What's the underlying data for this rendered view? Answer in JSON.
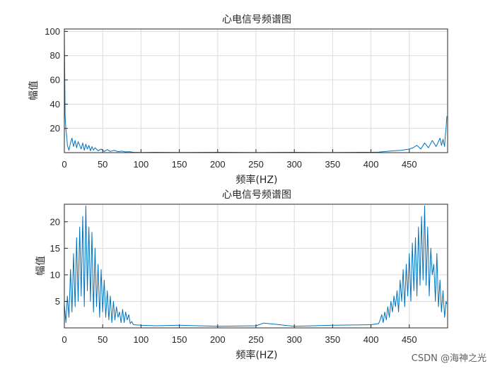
{
  "watermark": "CSDN @海神之光",
  "colors": {
    "line": "#0072BD",
    "grid": "#dcdcdc",
    "axis": "#262626"
  },
  "chart_data": [
    {
      "type": "line",
      "title": "心电信号频谱图",
      "xlabel": "频率(HZ)",
      "ylabel": "幅值",
      "xlim": [
        0,
        500
      ],
      "ylim": [
        0,
        102
      ],
      "xticks": [
        "0",
        "50",
        "100",
        "150",
        "200",
        "250",
        "300",
        "350",
        "400",
        "450"
      ],
      "yticks": [
        "20",
        "40",
        "60",
        "80",
        "100"
      ],
      "grid": true,
      "series": [
        {
          "name": "spectrum",
          "x": [
            0,
            1,
            2,
            3,
            4,
            6,
            8,
            10,
            12,
            14,
            16,
            18,
            20,
            22,
            24,
            26,
            28,
            30,
            32,
            34,
            36,
            38,
            40,
            44,
            48,
            52,
            56,
            60,
            65,
            70,
            75,
            80,
            85,
            90,
            100,
            120,
            150,
            200,
            250,
            300,
            350,
            400,
            410,
            420,
            430,
            440,
            450,
            455,
            460,
            465,
            470,
            475,
            480,
            485,
            488,
            490,
            492,
            494,
            496,
            497,
            498,
            499
          ],
          "values": [
            101,
            30,
            19,
            14,
            6,
            2,
            8,
            12,
            5,
            10,
            4,
            9,
            6,
            3,
            8,
            2,
            7,
            3,
            6,
            1.5,
            5,
            2,
            4,
            1.5,
            3,
            1,
            2.5,
            1,
            2,
            0.8,
            1.2,
            0.6,
            0.8,
            0.3,
            0.2,
            0.3,
            0.2,
            0.3,
            0.2,
            0.3,
            0.2,
            0.3,
            0.4,
            1,
            1.5,
            2,
            3,
            4,
            6,
            3,
            8,
            4,
            10,
            5,
            9,
            12,
            6,
            11,
            5,
            14,
            20,
            30
          ]
        }
      ]
    },
    {
      "type": "line",
      "title": "心电信号频谱图",
      "xlabel": "频率(HZ)",
      "ylabel": "幅值",
      "xlim": [
        0,
        500
      ],
      "ylim": [
        0,
        23.3
      ],
      "xticks": [
        "0",
        "50",
        "100",
        "150",
        "200",
        "250",
        "300",
        "350",
        "400",
        "450"
      ],
      "yticks": [
        "5",
        "10",
        "15",
        "20"
      ],
      "grid": true,
      "series": [
        {
          "name": "spectrum",
          "x": [
            0,
            2,
            4,
            6,
            8,
            10,
            12,
            14,
            16,
            18,
            20,
            22,
            24,
            26,
            28,
            30,
            32,
            34,
            36,
            38,
            40,
            42,
            44,
            46,
            48,
            50,
            52,
            54,
            56,
            58,
            60,
            62,
            64,
            66,
            68,
            70,
            72,
            74,
            76,
            78,
            80,
            82,
            84,
            86,
            88,
            90,
            100,
            120,
            150,
            200,
            250,
            260,
            300,
            350,
            400,
            410,
            412,
            414,
            416,
            418,
            420,
            422,
            424,
            426,
            428,
            430,
            432,
            434,
            436,
            438,
            440,
            442,
            444,
            446,
            448,
            450,
            452,
            454,
            456,
            458,
            460,
            462,
            464,
            466,
            468,
            470,
            472,
            474,
            476,
            478,
            480,
            482,
            484,
            486,
            488,
            490,
            492,
            494,
            496,
            498,
            499
          ],
          "values": [
            4.5,
            1,
            6,
            2,
            11,
            3,
            14,
            4,
            17,
            5,
            19,
            6,
            21,
            4,
            23,
            7,
            19,
            5,
            18,
            3,
            15,
            4,
            12,
            2,
            11,
            3,
            9,
            2,
            7,
            1.5,
            6,
            1,
            5,
            1.5,
            4,
            2,
            3,
            1,
            3.5,
            1,
            3,
            1.5,
            2.5,
            0.8,
            1.2,
            0.6,
            0.5,
            0.4,
            0.5,
            0.3,
            0.4,
            0.9,
            0.3,
            0.5,
            0.6,
            0.8,
            1.5,
            2.5,
            1,
            3,
            1.5,
            4,
            2,
            5,
            3,
            6,
            4,
            7,
            3,
            9,
            5,
            11,
            4,
            12,
            6,
            14,
            5,
            16,
            7,
            17,
            6,
            19,
            8,
            21,
            9,
            23,
            8,
            19,
            6,
            15,
            10,
            12,
            5,
            14,
            4,
            9,
            3,
            7,
            2,
            5,
            4.5
          ]
        }
      ]
    }
  ]
}
